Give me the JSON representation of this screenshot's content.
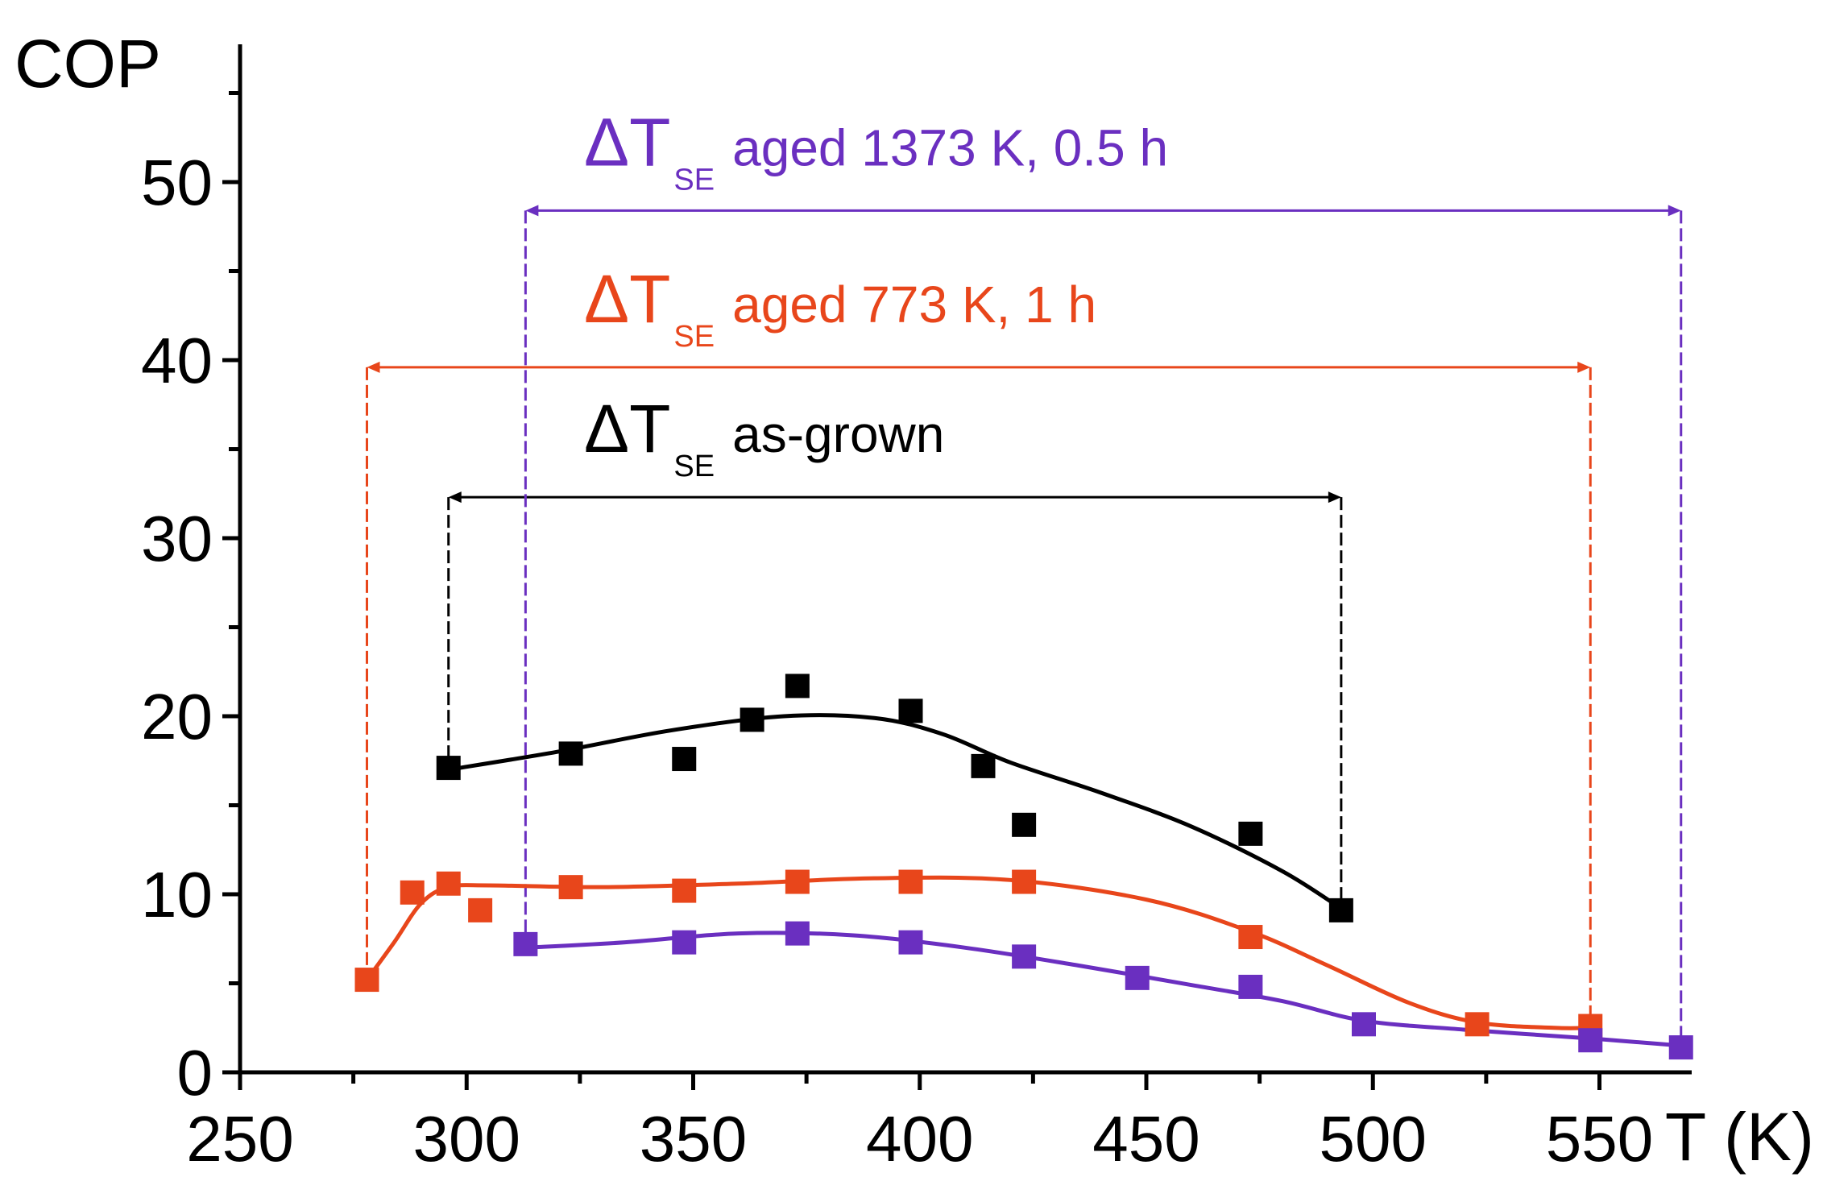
{
  "chart_data": {
    "type": "scatter",
    "title": "",
    "xlabel": "T (K)",
    "ylabel": "COP",
    "xlim": [
      250,
      570
    ],
    "ylim": [
      0,
      57
    ],
    "xticks": [
      250,
      300,
      350,
      400,
      450,
      500,
      550
    ],
    "yticks": [
      0,
      10,
      20,
      30,
      40,
      50
    ],
    "grid": false,
    "colors": {
      "as_grown": "#000000",
      "aged_773": "#e8461b",
      "aged_1373": "#6a2fc0"
    },
    "series": [
      {
        "name": "as-grown",
        "color": "#000000",
        "points": [
          [
            296,
            17.1
          ],
          [
            323,
            17.9
          ],
          [
            348,
            17.6
          ],
          [
            363,
            19.8
          ],
          [
            373,
            21.7
          ],
          [
            398,
            20.3
          ],
          [
            414,
            17.2
          ],
          [
            423,
            13.9
          ],
          [
            473,
            13.4
          ],
          [
            493,
            9.1
          ]
        ],
        "fit": [
          [
            296,
            17.0
          ],
          [
            320,
            18.0
          ],
          [
            345,
            19.2
          ],
          [
            370,
            20.0
          ],
          [
            390,
            19.9
          ],
          [
            405,
            19.0
          ],
          [
            420,
            17.4
          ],
          [
            440,
            15.7
          ],
          [
            460,
            13.8
          ],
          [
            480,
            11.3
          ],
          [
            493,
            9.2
          ]
        ]
      },
      {
        "name": "aged 773 K, 1 h",
        "color": "#e8461b",
        "points": [
          [
            278,
            5.2
          ],
          [
            288,
            10.1
          ],
          [
            296,
            10.6
          ],
          [
            303,
            9.1
          ],
          [
            323,
            10.4
          ],
          [
            348,
            10.2
          ],
          [
            373,
            10.7
          ],
          [
            398,
            10.7
          ],
          [
            423,
            10.7
          ],
          [
            473,
            7.6
          ],
          [
            523,
            2.7
          ],
          [
            548,
            2.6
          ]
        ],
        "fit": [
          [
            278,
            5.2
          ],
          [
            284,
            7.3
          ],
          [
            290,
            9.5
          ],
          [
            296,
            10.4
          ],
          [
            305,
            10.5
          ],
          [
            330,
            10.4
          ],
          [
            360,
            10.6
          ],
          [
            390,
            10.9
          ],
          [
            420,
            10.8
          ],
          [
            450,
            9.7
          ],
          [
            473,
            7.9
          ],
          [
            490,
            6.0
          ],
          [
            508,
            3.9
          ],
          [
            523,
            2.8
          ],
          [
            540,
            2.5
          ],
          [
            548,
            2.5
          ]
        ]
      },
      {
        "name": "aged 1373 K, 0.5 h",
        "color": "#6a2fc0",
        "points": [
          [
            313,
            7.2
          ],
          [
            348,
            7.3
          ],
          [
            373,
            7.8
          ],
          [
            398,
            7.3
          ],
          [
            423,
            6.5
          ],
          [
            448,
            5.3
          ],
          [
            473,
            4.8
          ],
          [
            498,
            2.7
          ],
          [
            548,
            1.8
          ],
          [
            568,
            1.4
          ]
        ],
        "fit": [
          [
            313,
            7.0
          ],
          [
            335,
            7.3
          ],
          [
            360,
            7.8
          ],
          [
            385,
            7.7
          ],
          [
            410,
            7.0
          ],
          [
            435,
            6.0
          ],
          [
            460,
            4.9
          ],
          [
            480,
            4.0
          ],
          [
            498,
            2.9
          ],
          [
            520,
            2.4
          ],
          [
            548,
            1.9
          ],
          [
            568,
            1.5
          ]
        ]
      }
    ],
    "ranges": [
      {
        "name": "as-grown",
        "x_from": 296,
        "x_to": 493,
        "level": 32.3,
        "y_from": 17.1,
        "y_to": 9.1,
        "prefix": "ΔT",
        "sub": "SE",
        "label": "as-grown",
        "color": "#000000"
      },
      {
        "name": "aged 773 K, 1 h",
        "x_from": 278,
        "x_to": 548,
        "level": 39.6,
        "y_from": 5.2,
        "y_to": 2.6,
        "prefix": "ΔT",
        "sub": "SE",
        "label": "aged 773 K, 1 h",
        "color": "#e8461b"
      },
      {
        "name": "aged 1373 K, 0.5 h",
        "x_from": 313,
        "x_to": 568,
        "level": 48.4,
        "y_from": 7.2,
        "y_to": 1.4,
        "prefix": "ΔT",
        "sub": "SE",
        "label": "aged 1373 K, 0.5 h",
        "color": "#6a2fc0"
      }
    ]
  }
}
